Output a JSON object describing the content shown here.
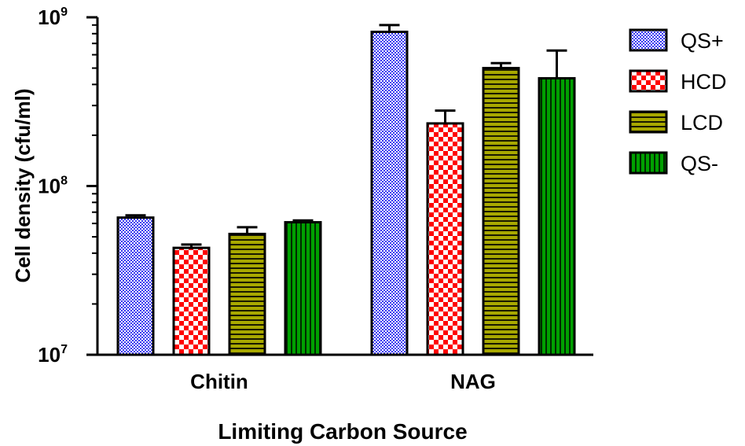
{
  "chart_data": {
    "type": "bar",
    "title": "",
    "xlabel": "Limiting Carbon Source",
    "ylabel": "Cell density (cfu/ml)",
    "yscale": "log",
    "ylim": [
      10000000,
      1000000000
    ],
    "y_ticks": [
      {
        "value": 10000000,
        "base": "10",
        "exp": "7"
      },
      {
        "value": 100000000,
        "base": "10",
        "exp": "8"
      },
      {
        "value": 1000000000,
        "base": "10",
        "exp": "9"
      }
    ],
    "categories": [
      "Chitin",
      "NAG"
    ],
    "series": [
      {
        "name": "QS+",
        "values": [
          65000000,
          820000000
        ],
        "errors": [
          2000000,
          80000000
        ],
        "color": "#3a3af0",
        "pattern": "checker-fine"
      },
      {
        "name": "HCD",
        "values": [
          43000000,
          235000000
        ],
        "errors": [
          2000000,
          45000000
        ],
        "color": "#ff0000",
        "pattern": "checker-coarse"
      },
      {
        "name": "LCD",
        "values": [
          52000000,
          500000000
        ],
        "errors": [
          5000000,
          35000000
        ],
        "color": "#a8a800",
        "pattern": "horizontal-stripes"
      },
      {
        "name": "QS-",
        "values": [
          61000000,
          435000000
        ],
        "errors": [
          1500000,
          200000000
        ],
        "color": "#00a000",
        "pattern": "vertical-stripes"
      }
    ],
    "legend": "right",
    "grid": false
  }
}
